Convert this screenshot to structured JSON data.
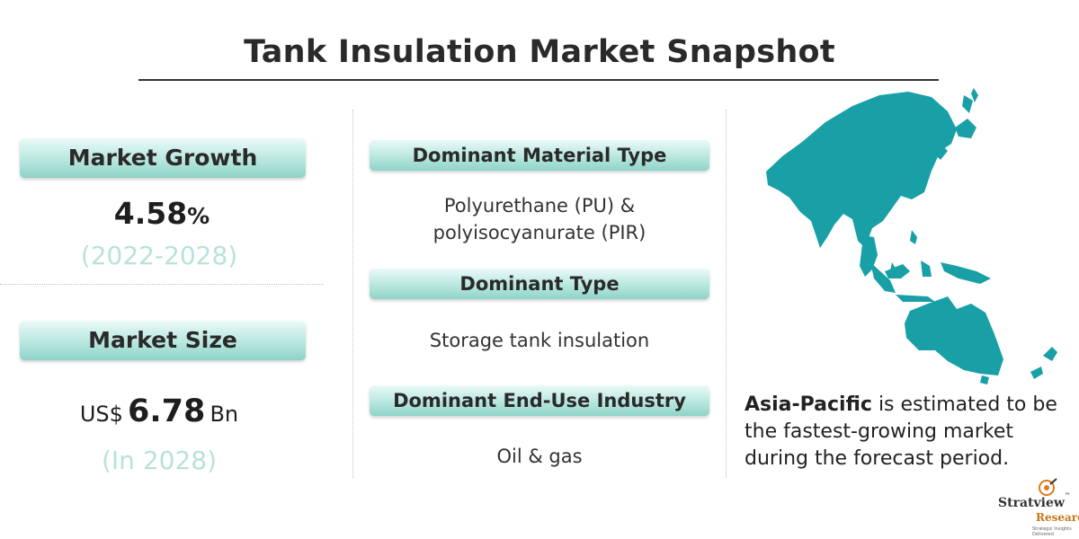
{
  "header": {
    "title": "Tank Insulation Market Snapshot"
  },
  "market_growth": {
    "label": "Market Growth",
    "value": "4.58",
    "unit": "%",
    "period": "(2022-2028)"
  },
  "market_size": {
    "label": "Market Size",
    "prefix": "US$",
    "value": "6.78",
    "suffix": "Bn",
    "period": "(In 2028)"
  },
  "segments": [
    {
      "label": "Dominant Material Type",
      "lines": [
        "Polyurethane (PU) &",
        "polyisocyanurate (PIR)"
      ]
    },
    {
      "label": "Dominant Type",
      "lines": [
        "Storage tank insulation"
      ]
    },
    {
      "label": "Dominant End-Use Industry",
      "lines": [
        "Oil & gas"
      ]
    }
  ],
  "region": {
    "highlight": "Asia-Pacific",
    "text": " is estimated to be the fastest-growing market during the forecast period."
  },
  "logo": {
    "name": "Stratview",
    "tm": "™",
    "sub": "Research",
    "tagline": "Strategic Insights Delivered"
  },
  "colors": {
    "accent": "#18a0a6",
    "pill_light": "#eafaf7",
    "pill_dark": "#8fd3c8",
    "muted_text": "#b8e2db"
  },
  "icons": {
    "map": "asia-pacific-map-icon",
    "logo": "stratview-logo-icon"
  }
}
